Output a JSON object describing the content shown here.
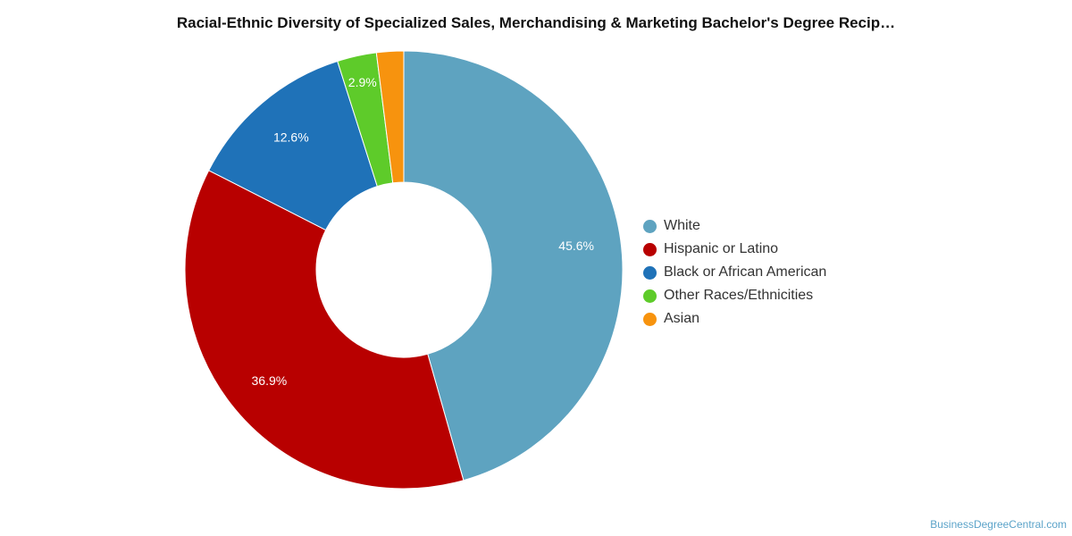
{
  "title": "Racial-Ethnic Diversity of Specialized Sales, Merchandising & Marketing Bachelor's Degree Recip…",
  "credit": "BusinessDegreeCentral.com",
  "chart_data": {
    "type": "pie",
    "donut": true,
    "legend_position": "right",
    "slices": [
      {
        "name": "White",
        "value": 45.6,
        "label": "45.6%",
        "color": "#5ea3c0"
      },
      {
        "name": "Hispanic or Latino",
        "value": 36.9,
        "label": "36.9%",
        "color": "#b80000"
      },
      {
        "name": "Black or African American",
        "value": 12.6,
        "label": "12.6%",
        "color": "#1f72b8"
      },
      {
        "name": "Other Races/Ethnicities",
        "value": 2.9,
        "label": "2.9%",
        "color": "#5ecb2a"
      },
      {
        "name": "Asian",
        "value": 2.0,
        "label": "",
        "color": "#f7930e"
      }
    ]
  }
}
